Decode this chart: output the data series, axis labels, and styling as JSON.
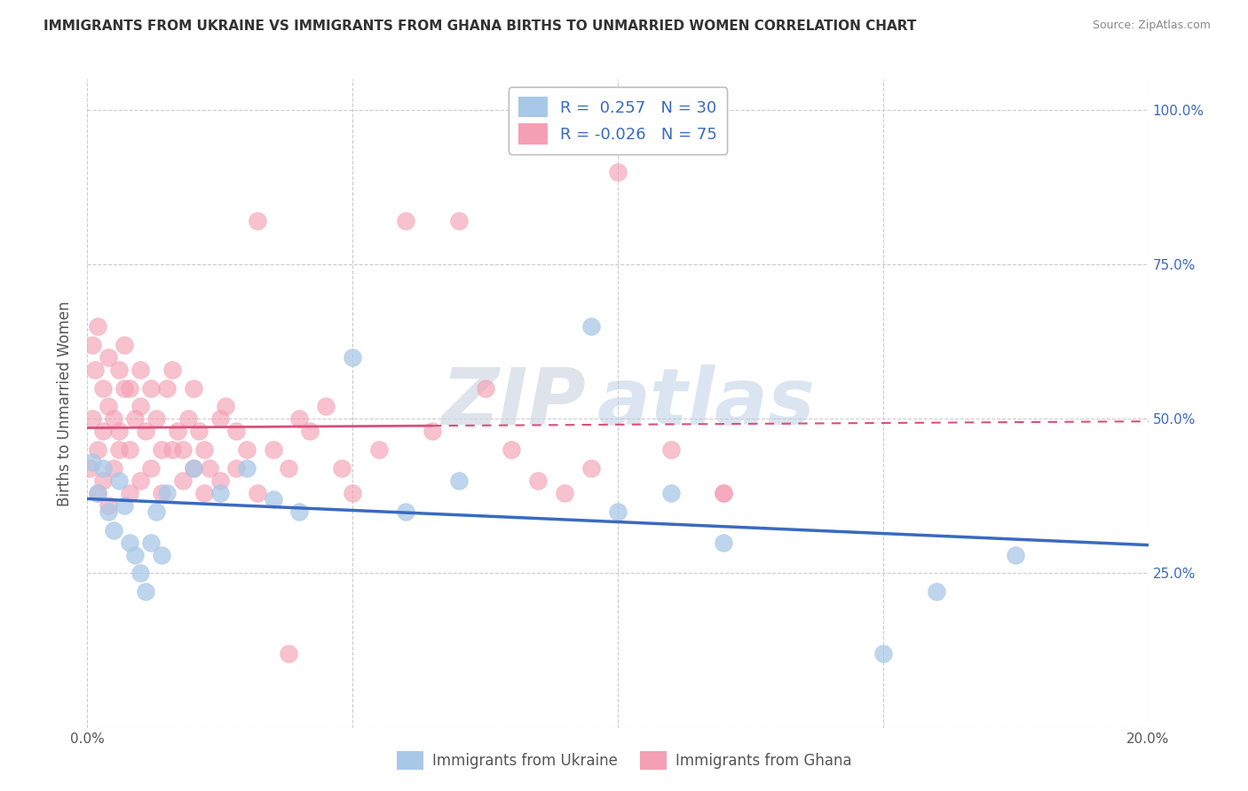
{
  "title": "IMMIGRANTS FROM UKRAINE VS IMMIGRANTS FROM GHANA BIRTHS TO UNMARRIED WOMEN CORRELATION CHART",
  "source": "Source: ZipAtlas.com",
  "ylabel": "Births to Unmarried Women",
  "xlabel_ukraine": "Immigrants from Ukraine",
  "xlabel_ghana": "Immigrants from Ghana",
  "r_ukraine": 0.257,
  "n_ukraine": 30,
  "r_ghana": -0.026,
  "n_ghana": 75,
  "xlim": [
    0.0,
    0.2
  ],
  "ylim": [
    0.0,
    1.05
  ],
  "color_ukraine": "#a8c8e8",
  "color_ghana": "#f4a0b4",
  "line_ukraine": "#3a6abf",
  "line_ghana": "#d94f7a",
  "watermark_zip": "ZIP",
  "watermark_atlas": "atlas",
  "ukraine_scatter_x": [
    0.001,
    0.002,
    0.003,
    0.004,
    0.005,
    0.006,
    0.007,
    0.008,
    0.009,
    0.01,
    0.011,
    0.012,
    0.013,
    0.014,
    0.015,
    0.02,
    0.025,
    0.03,
    0.035,
    0.04,
    0.05,
    0.06,
    0.07,
    0.095,
    0.1,
    0.11,
    0.12,
    0.15,
    0.16,
    0.175
  ],
  "ukraine_scatter_y": [
    0.43,
    0.38,
    0.42,
    0.35,
    0.32,
    0.4,
    0.36,
    0.3,
    0.28,
    0.25,
    0.22,
    0.3,
    0.35,
    0.28,
    0.38,
    0.42,
    0.38,
    0.42,
    0.37,
    0.35,
    0.6,
    0.35,
    0.4,
    0.65,
    0.35,
    0.38,
    0.3,
    0.12,
    0.22,
    0.28
  ],
  "ghana_scatter_x": [
    0.0005,
    0.001,
    0.001,
    0.0015,
    0.002,
    0.002,
    0.003,
    0.003,
    0.004,
    0.004,
    0.005,
    0.005,
    0.006,
    0.006,
    0.007,
    0.007,
    0.008,
    0.008,
    0.009,
    0.01,
    0.01,
    0.011,
    0.012,
    0.013,
    0.014,
    0.015,
    0.016,
    0.017,
    0.018,
    0.019,
    0.02,
    0.021,
    0.022,
    0.023,
    0.025,
    0.026,
    0.028,
    0.03,
    0.032,
    0.035,
    0.038,
    0.04,
    0.042,
    0.045,
    0.048,
    0.05,
    0.055,
    0.06,
    0.065,
    0.07,
    0.075,
    0.08,
    0.085,
    0.09,
    0.095,
    0.1,
    0.11,
    0.12,
    0.002,
    0.003,
    0.004,
    0.006,
    0.008,
    0.01,
    0.012,
    0.014,
    0.016,
    0.018,
    0.02,
    0.022,
    0.025,
    0.028,
    0.032,
    0.038,
    0.12
  ],
  "ghana_scatter_y": [
    0.42,
    0.5,
    0.62,
    0.58,
    0.65,
    0.45,
    0.55,
    0.48,
    0.6,
    0.52,
    0.5,
    0.42,
    0.58,
    0.48,
    0.55,
    0.62,
    0.45,
    0.55,
    0.5,
    0.58,
    0.52,
    0.48,
    0.55,
    0.5,
    0.45,
    0.55,
    0.58,
    0.48,
    0.45,
    0.5,
    0.55,
    0.48,
    0.45,
    0.42,
    0.5,
    0.52,
    0.48,
    0.45,
    0.82,
    0.45,
    0.42,
    0.5,
    0.48,
    0.52,
    0.42,
    0.38,
    0.45,
    0.82,
    0.48,
    0.82,
    0.55,
    0.45,
    0.4,
    0.38,
    0.42,
    0.9,
    0.45,
    0.38,
    0.38,
    0.4,
    0.36,
    0.45,
    0.38,
    0.4,
    0.42,
    0.38,
    0.45,
    0.4,
    0.42,
    0.38,
    0.4,
    0.42,
    0.38,
    0.12,
    0.38
  ]
}
